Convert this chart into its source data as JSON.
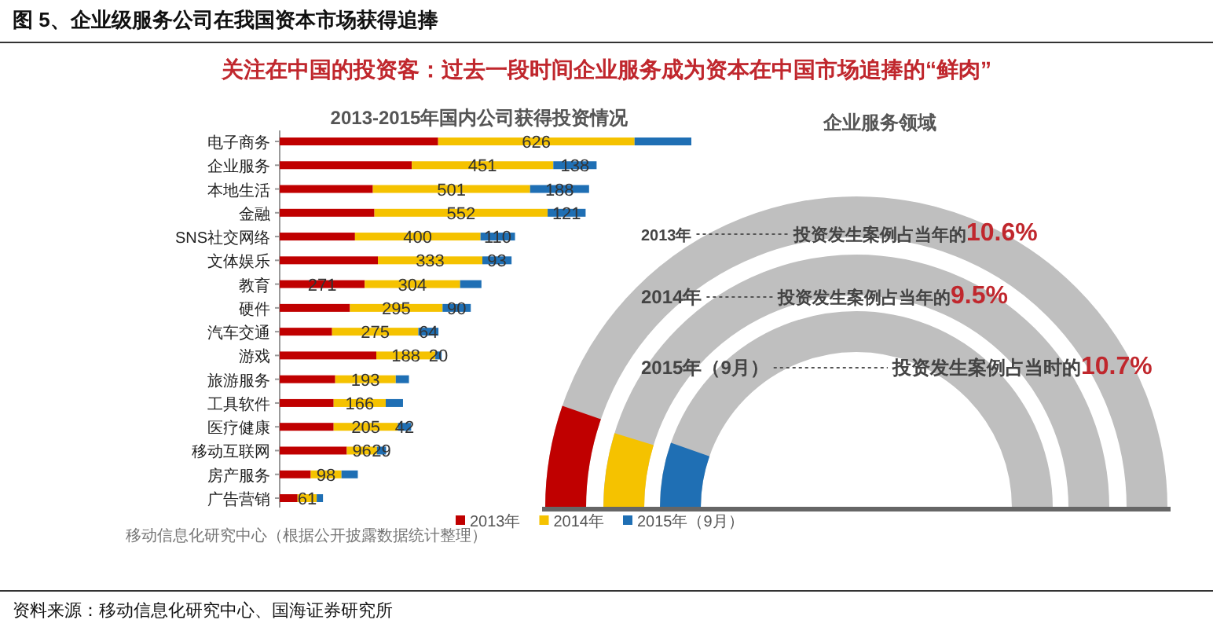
{
  "chart_data": [
    {
      "type": "bar",
      "orientation": "horizontal",
      "stacked": true,
      "title": "2013-2015年国内公司获得投资情况",
      "legend": "bottom",
      "categories": [
        "电子商务",
        "企业服务",
        "本地生活",
        "金融",
        "SNS社交网络",
        "文体娱乐",
        "教育",
        "硬件",
        "汽车交通",
        "游戏",
        "旅游服务",
        "工具软件",
        "医疗健康",
        "移动互联网",
        "房产服务",
        "广告营销"
      ],
      "series": [
        {
          "name": "2013年",
          "color": "#c00000",
          "values": [
            505,
            421,
            297,
            302,
            240,
            313,
            271,
            224,
            167,
            308,
            177,
            172,
            172,
            214,
            99,
            57
          ],
          "value_labels": [
            null,
            null,
            null,
            null,
            null,
            null,
            "271",
            null,
            null,
            null,
            null,
            null,
            null,
            null,
            null,
            null
          ]
        },
        {
          "name": "2014年",
          "color": "#f5c200",
          "values": [
            626,
            451,
            501,
            552,
            400,
            333,
            304,
            295,
            275,
            188,
            193,
            166,
            205,
            96,
            98,
            61
          ],
          "value_labels": [
            "626",
            "451",
            "501",
            "552",
            "400",
            "333",
            "304",
            "295",
            "275",
            "188",
            "193",
            "166",
            "205",
            "96",
            "98",
            "61"
          ]
        },
        {
          "name": "2015年（9月）",
          "color": "#1f6fb4",
          "values": [
            181,
            138,
            188,
            121,
            110,
            93,
            68,
            90,
            64,
            20,
            42,
            55,
            42,
            29,
            52,
            20
          ],
          "value_labels": [
            null,
            "138",
            "188",
            "121",
            "110",
            "93",
            null,
            "90",
            "64",
            "20",
            null,
            null,
            "42",
            "29",
            null,
            null
          ]
        }
      ],
      "annotations": [
        "图 5、企业级服务公司在我国资本市场获得追捧",
        "关注在中国的投资客：过去一段时间企业服务成为资本在中国市场追捧的“鲜肉”",
        "移动信息化研究中心（根据公开披露数据统计整理）",
        "资料来源：移动信息化研究中心、国海证券研究所"
      ]
    },
    {
      "type": "other",
      "title": "企业服务领域",
      "categories": [
        "2013年",
        "2014年",
        "2015年（9月）"
      ],
      "values": [
        10.6,
        9.5,
        10.7
      ],
      "colors": [
        "#c00000",
        "#f5c200",
        "#1f6fb4"
      ],
      "value_labels": [
        "10.6%",
        "9.5%",
        "10.7%"
      ],
      "annotations": [
        "投资发生案例占当年的",
        "投资发生案例占当年的",
        "投资发生案例占当时的"
      ]
    }
  ]
}
